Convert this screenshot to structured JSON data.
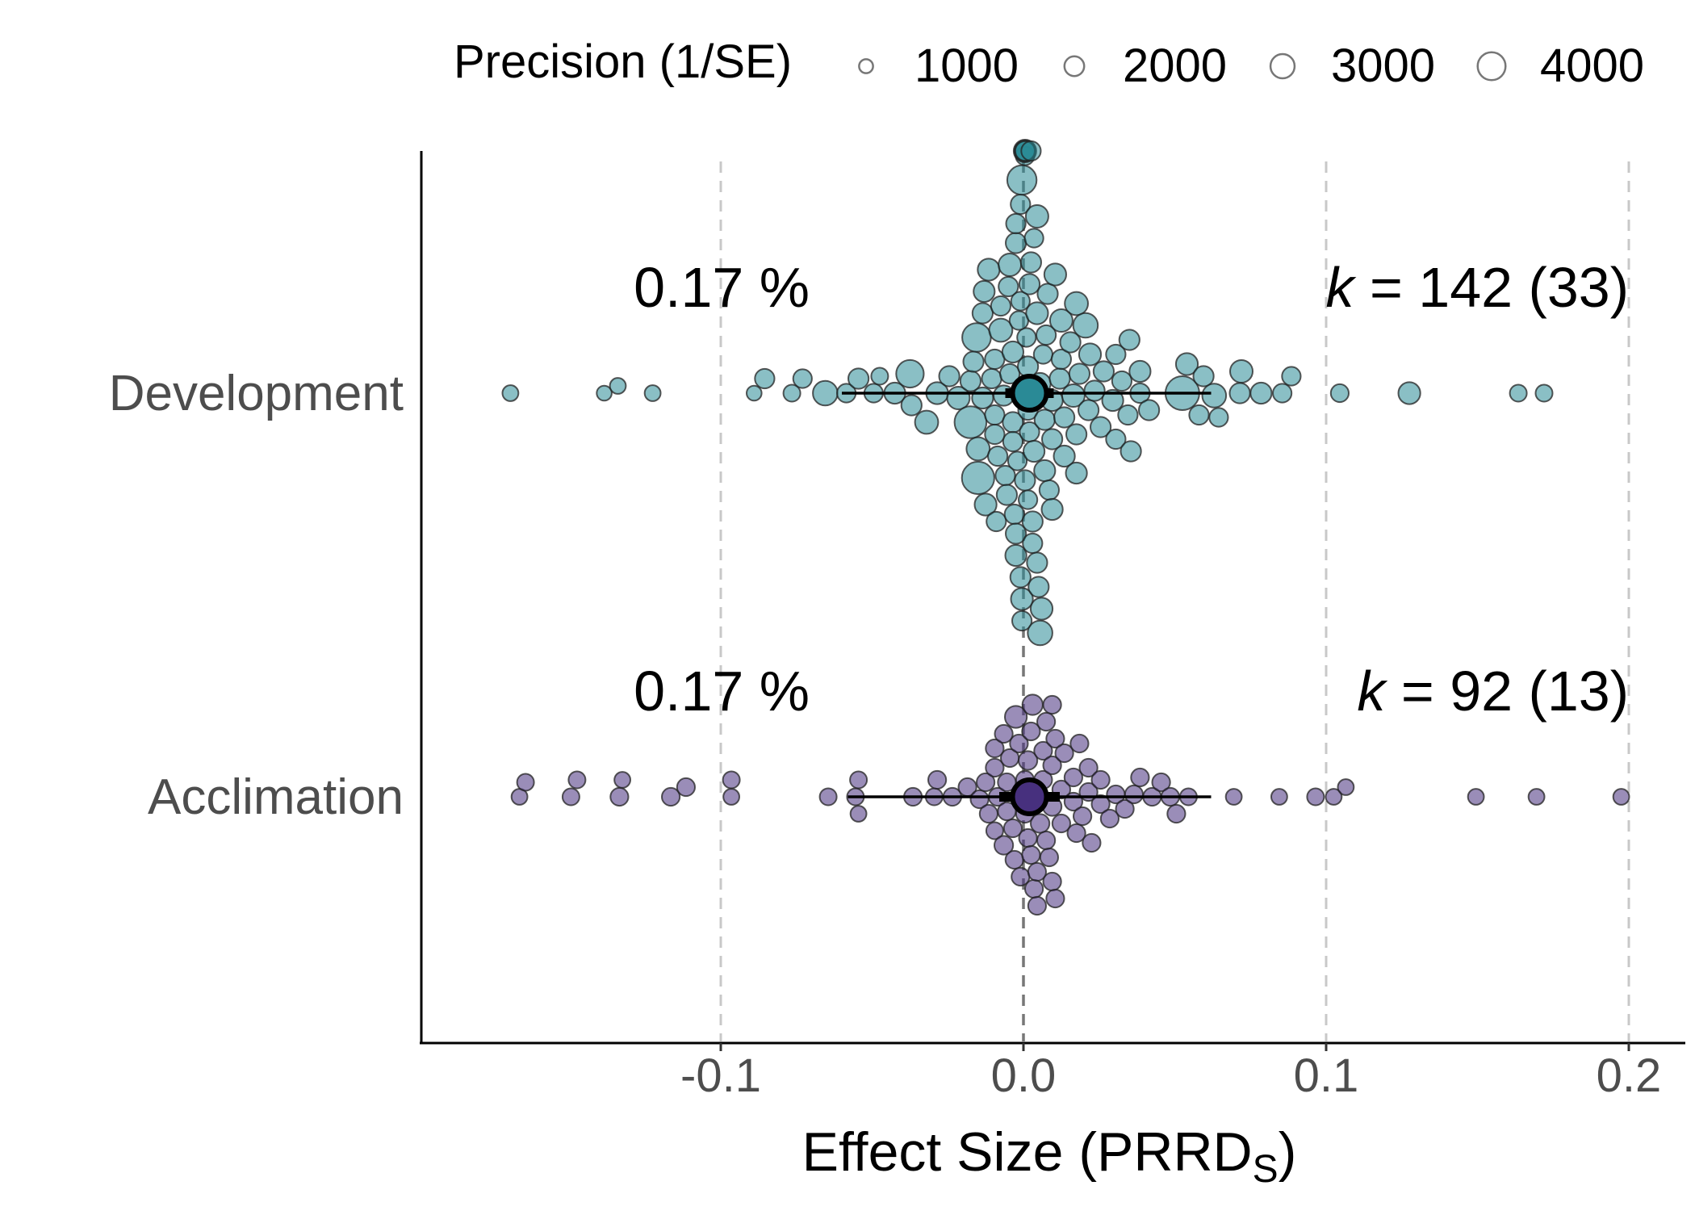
{
  "chart_data": {
    "type": "scatter",
    "subtype": "orchard plot (beeswarm with pooled estimate and confidence interval)",
    "xlabel": "Effect Size (PRRD",
    "xlabel_subscript": "S",
    "xlabel_suffix": ")",
    "xlim": [
      -0.2,
      0.22
    ],
    "x_ticks": [
      -0.1,
      0.0,
      0.1,
      0.2
    ],
    "x_tick_labels": [
      "-0.1",
      "0.0",
      "0.1",
      "0.2"
    ],
    "gridlines": "vertical dashed at x ticks; dark dashed reference line at 0",
    "legend": {
      "placement": "top",
      "title": "Precision (1/SE)",
      "entries": [
        {
          "label": "1000",
          "value": 1000
        },
        {
          "label": "2000",
          "value": 2000
        },
        {
          "label": "3000",
          "value": 3000
        },
        {
          "label": "4000",
          "value": 4000
        }
      ]
    },
    "colors": {
      "Development": "#2a8a96",
      "Acclimation": "#47307e",
      "reference_line": "#777777",
      "grid": "#c8c8c8"
    },
    "groups": [
      {
        "name": "Development",
        "mean": 0.002,
        "ci": [
          -0.006,
          0.01
        ],
        "pi": [
          -0.06,
          0.062
        ],
        "percent_label": "0.17 %",
        "k_label": "k",
        "k_value": "= 142",
        "k_studies": "(33)",
        "points": [
          {
            "x": -0.1695,
            "p": 800
          },
          {
            "x": -0.1385,
            "p": 700
          },
          {
            "x": -0.134,
            "p": 800
          },
          {
            "x": -0.1225,
            "p": 800
          },
          {
            "x": -0.089,
            "p": 700
          },
          {
            "x": -0.0855,
            "p": 1200
          },
          {
            "x": -0.0765,
            "p": 900
          },
          {
            "x": -0.073,
            "p": 1100
          },
          {
            "x": -0.0655,
            "p": 1900
          },
          {
            "x": -0.0585,
            "p": 1100
          },
          {
            "x": -0.0545,
            "p": 1300
          },
          {
            "x": -0.0495,
            "p": 1100
          },
          {
            "x": -0.0475,
            "p": 900
          },
          {
            "x": -0.0425,
            "p": 1400
          },
          {
            "x": -0.037,
            "p": 1300
          },
          {
            "x": -0.0375,
            "p": 2400
          },
          {
            "x": -0.032,
            "p": 1700
          },
          {
            "x": -0.0285,
            "p": 1500
          },
          {
            "x": -0.0245,
            "p": 1300
          },
          {
            "x": -0.0215,
            "p": 1600
          },
          {
            "x": -0.0175,
            "p": 1300
          },
          {
            "x": -0.0135,
            "p": 1400
          },
          {
            "x": -0.0095,
            "p": 1200
          },
          {
            "x": -0.0065,
            "p": 1300
          },
          {
            "x": -0.0035,
            "p": 1300
          },
          {
            "x": -0.0045,
            "p": 1600
          },
          {
            "x": -0.015,
            "p": 1700
          },
          {
            "x": -0.0165,
            "p": 1300
          },
          {
            "x": -0.009,
            "p": 1200
          },
          {
            "x": -0.0155,
            "p": 2600
          },
          {
            "x": -0.0175,
            "p": 3200
          },
          {
            "x": -0.0125,
            "p": 1500
          },
          {
            "x": -0.0075,
            "p": 1700
          },
          {
            "x": -0.0045,
            "p": 1200
          },
          {
            "x": -0.0035,
            "p": 1400
          },
          {
            "x": 0.0005,
            "p": 1300
          },
          {
            "x": 0.0035,
            "p": 1400
          },
          {
            "x": 0.007,
            "p": 1300
          },
          {
            "x": -0.001,
            "p": 1300
          },
          {
            "x": 0.0025,
            "p": 1300
          },
          {
            "x": -0.0025,
            "p": 1300
          },
          {
            "x": 0.003,
            "p": 1300
          },
          {
            "x": 0.0055,
            "p": 1900
          },
          {
            "x": 0.0015,
            "p": 1200
          },
          {
            "x": 0.002,
            "p": 1200
          },
          {
            "x": 0.0005,
            "p": 1100
          },
          {
            "x": 0.0035,
            "p": 1100
          },
          {
            "x": -0.001,
            "p": 1100
          },
          {
            "x": -0.0135,
            "p": 1300
          },
          {
            "x": -0.0105,
            "p": 1200
          },
          {
            "x": -0.013,
            "p": 1400
          },
          {
            "x": -0.0095,
            "p": 1200
          },
          {
            "x": -0.0055,
            "p": 1300
          },
          {
            "x": -0.0115,
            "p": 1500
          },
          {
            "x": -0.015,
            "p": 3300
          },
          {
            "x": -0.0025,
            "p": 1300
          },
          {
            "x": 0.0005,
            "p": 1600
          },
          {
            "x": 0.007,
            "p": 1400
          },
          {
            "x": 0.0045,
            "p": 1600
          },
          {
            "x": 0.0045,
            "p": 1500
          },
          {
            "x": 0.0015,
            "p": 1300
          },
          {
            "x": 0.006,
            "p": 1500
          },
          {
            "x": 0.002,
            "p": 1300
          },
          {
            "x": 0.0005,
            "p": 1200
          },
          {
            "x": -0.001,
            "p": 1200
          },
          {
            "x": -0.0005,
            "p": 1100
          },
          {
            "x": -0.0015,
            "p": 1100
          },
          {
            "x": 0.001,
            "p": 1100
          },
          {
            "x": 0.0005,
            "p": 1400
          },
          {
            "x": -0.0005,
            "p": 1500
          },
          {
            "x": 0.0055,
            "p": 1400
          },
          {
            "x": -0.0025,
            "p": 1400
          },
          {
            "x": 0.005,
            "p": 1300
          },
          {
            "x": -0.0005,
            "p": 2700
          },
          {
            "x": -0.0025,
            "p": 1200
          },
          {
            "x": 0.0045,
            "p": 1300
          },
          {
            "x": 0.008,
            "p": 1300
          },
          {
            "x": 0.0095,
            "p": 1400
          },
          {
            "x": 0.0105,
            "p": 1500
          },
          {
            "x": 0.0135,
            "p": 1300
          },
          {
            "x": 0.0165,
            "p": 1600
          },
          {
            "x": 0.0175,
            "p": 1300
          },
          {
            "x": 0.0205,
            "p": 1900
          },
          {
            "x": 0.0235,
            "p": 1300
          },
          {
            "x": 0.0265,
            "p": 1300
          },
          {
            "x": 0.0305,
            "p": 1200
          },
          {
            "x": 0.0325,
            "p": 1200
          },
          {
            "x": 0.0355,
            "p": 1300
          },
          {
            "x": 0.0385,
            "p": 1200
          },
          {
            "x": 0.0415,
            "p": 1300
          },
          {
            "x": 0.0095,
            "p": 1300
          },
          {
            "x": 0.0135,
            "p": 1400
          },
          {
            "x": 0.0175,
            "p": 1400
          },
          {
            "x": 0.0215,
            "p": 1300
          },
          {
            "x": 0.0255,
            "p": 1300
          },
          {
            "x": 0.0305,
            "p": 1200
          },
          {
            "x": 0.0345,
            "p": 1200
          },
          {
            "x": 0.0125,
            "p": 1600
          },
          {
            "x": 0.0175,
            "p": 1700
          },
          {
            "x": 0.022,
            "p": 1500
          },
          {
            "x": 0.0295,
            "p": 1400
          },
          {
            "x": 0.035,
            "p": 1300
          },
          {
            "x": 0.0385,
            "p": 1400
          },
          {
            "x": 0.0095,
            "p": 1400
          },
          {
            "x": 0.012,
            "p": 1300
          },
          {
            "x": 0.0155,
            "p": 1300
          },
          {
            "x": 0.0185,
            "p": 1300
          },
          {
            "x": 0.0125,
            "p": 1200
          },
          {
            "x": 0.0525,
            "p": 3600
          },
          {
            "x": 0.054,
            "p": 1500
          },
          {
            "x": 0.058,
            "p": 1200
          },
          {
            "x": 0.0595,
            "p": 1300
          },
          {
            "x": 0.063,
            "p": 1800
          },
          {
            "x": 0.0645,
            "p": 1100
          },
          {
            "x": 0.0715,
            "p": 1300
          },
          {
            "x": 0.072,
            "p": 1600
          },
          {
            "x": 0.0785,
            "p": 1400
          },
          {
            "x": 0.0855,
            "p": 1100
          },
          {
            "x": 0.0885,
            "p": 1100
          },
          {
            "x": 0.1045,
            "p": 1000
          },
          {
            "x": 0.1275,
            "p": 1500
          },
          {
            "x": 0.1635,
            "p": 900
          },
          {
            "x": 0.172,
            "p": 900
          },
          {
            "x": -0.0095,
            "p": 1200
          },
          {
            "x": -0.0085,
            "p": 1200
          },
          {
            "x": -0.006,
            "p": 1200
          },
          {
            "x": -0.005,
            "p": 1200
          },
          {
            "x": -0.003,
            "p": 1200
          },
          {
            "x": 0.0005,
            "p": 1200
          },
          {
            "x": -0.0005,
            "p": 1200
          },
          {
            "x": 0.003,
            "p": 1200
          },
          {
            "x": -0.0035,
            "p": 1200
          },
          {
            "x": 0.0025,
            "p": 1200
          },
          {
            "x": -0.002,
            "p": 1100
          },
          {
            "x": 0.0015,
            "p": 1100
          },
          {
            "x": 0.0065,
            "p": 1100
          },
          {
            "x": 0.0075,
            "p": 1200
          },
          {
            "x": 0.0085,
            "p": 1200
          },
          {
            "x": -0.0075,
            "p": 1200
          }
        ]
      },
      {
        "name": "Acclimation",
        "mean": 0.002,
        "ci": [
          -0.008,
          0.012
        ],
        "pi": [
          -0.058,
          0.062
        ],
        "percent_label": "0.17 %",
        "k_label": "k",
        "k_value": "= 92",
        "k_studies": "(13)",
        "points": [
          {
            "x": -0.1665,
            "p": 800
          },
          {
            "x": -0.1645,
            "p": 900
          },
          {
            "x": -0.1495,
            "p": 900
          },
          {
            "x": -0.1475,
            "p": 900
          },
          {
            "x": -0.1335,
            "p": 1000
          },
          {
            "x": -0.1325,
            "p": 800
          },
          {
            "x": -0.1165,
            "p": 1000
          },
          {
            "x": -0.1115,
            "p": 1000
          },
          {
            "x": -0.0965,
            "p": 800
          },
          {
            "x": -0.0965,
            "p": 900
          },
          {
            "x": -0.0645,
            "p": 900
          },
          {
            "x": -0.0545,
            "p": 900
          },
          {
            "x": -0.0545,
            "p": 800
          },
          {
            "x": -0.0555,
            "p": 900
          },
          {
            "x": -0.0365,
            "p": 1000
          },
          {
            "x": -0.0295,
            "p": 900
          },
          {
            "x": -0.0285,
            "p": 1000
          },
          {
            "x": -0.0235,
            "p": 1000
          },
          {
            "x": -0.0185,
            "p": 1000
          },
          {
            "x": -0.0145,
            "p": 1000
          },
          {
            "x": -0.0125,
            "p": 1000
          },
          {
            "x": -0.0095,
            "p": 1000
          },
          {
            "x": -0.0065,
            "p": 1100
          },
          {
            "x": -0.0065,
            "p": 1000
          },
          {
            "x": -0.0035,
            "p": 1000
          },
          {
            "x": -0.0025,
            "p": 1500
          },
          {
            "x": -0.0095,
            "p": 900
          },
          {
            "x": -0.0095,
            "p": 1000
          },
          {
            "x": -0.0055,
            "p": 1000
          },
          {
            "x": -0.001,
            "p": 1000
          },
          {
            "x": 0.0005,
            "p": 1000
          },
          {
            "x": 0.003,
            "p": 1300
          },
          {
            "x": 0.0055,
            "p": 1100
          },
          {
            "x": 0.0085,
            "p": 1000
          },
          {
            "x": 0.0105,
            "p": 1000
          },
          {
            "x": 0.0015,
            "p": 1100
          },
          {
            "x": 0.0045,
            "p": 1100
          },
          {
            "x": 0.0075,
            "p": 1000
          },
          {
            "x": 0.0095,
            "p": 1100
          },
          {
            "x": 0.0125,
            "p": 1000
          },
          {
            "x": 0.0165,
            "p": 1000
          },
          {
            "x": 0.0195,
            "p": 1000
          },
          {
            "x": 0.0225,
            "p": 1000
          },
          {
            "x": 0.0255,
            "p": 1000
          },
          {
            "x": 0.0285,
            "p": 1000
          },
          {
            "x": 0.0305,
            "p": 1000
          },
          {
            "x": 0.0335,
            "p": 1000
          },
          {
            "x": 0.0365,
            "p": 1000
          },
          {
            "x": 0.0385,
            "p": 1000
          },
          {
            "x": 0.0425,
            "p": 1000
          },
          {
            "x": 0.0455,
            "p": 1000
          },
          {
            "x": 0.0485,
            "p": 1000
          },
          {
            "x": 0.0505,
            "p": 1000
          },
          {
            "x": 0.0545,
            "p": 900
          },
          {
            "x": 0.0695,
            "p": 800
          },
          {
            "x": 0.0845,
            "p": 800
          },
          {
            "x": 0.0965,
            "p": 900
          },
          {
            "x": 0.1025,
            "p": 800
          },
          {
            "x": 0.1065,
            "p": 800
          },
          {
            "x": 0.1495,
            "p": 800
          },
          {
            "x": 0.1695,
            "p": 800
          },
          {
            "x": 0.1975,
            "p": 800
          },
          {
            "x": 0.0025,
            "p": 1000
          },
          {
            "x": 0.0065,
            "p": 1000
          },
          {
            "x": 0.0095,
            "p": 1000
          },
          {
            "x": 0.0135,
            "p": 1000
          },
          {
            "x": 0.0165,
            "p": 1000
          },
          {
            "x": 0.0215,
            "p": 1000
          },
          {
            "x": 0.0255,
            "p": 1000
          },
          {
            "x": 0.0095,
            "p": 1000
          },
          {
            "x": 0.0125,
            "p": 1000
          },
          {
            "x": 0.0175,
            "p": 1000
          },
          {
            "x": 0.0215,
            "p": 1000
          },
          {
            "x": 0.0045,
            "p": 1000
          },
          {
            "x": 0.0065,
            "p": 1000
          },
          {
            "x": 0.0025,
            "p": 1000
          },
          {
            "x": -0.003,
            "p": 1000
          },
          {
            "x": -0.0015,
            "p": 1000
          },
          {
            "x": 0.0005,
            "p": 1000
          },
          {
            "x": 0.0045,
            "p": 1000
          },
          {
            "x": 0.0075,
            "p": 1000
          },
          {
            "x": -0.0045,
            "p": 1000
          },
          {
            "x": 0.0095,
            "p": 1000
          },
          {
            "x": 0.0015,
            "p": 1000
          },
          {
            "x": 0.0035,
            "p": 1000
          },
          {
            "x": -0.0015,
            "p": 1000
          },
          {
            "x": 0.0185,
            "p": 1000
          },
          {
            "x": 0.0105,
            "p": 1000
          },
          {
            "x": -0.0085,
            "p": 1000
          },
          {
            "x": -0.0055,
            "p": 1000
          },
          {
            "x": -0.0115,
            "p": 1000
          }
        ]
      }
    ]
  }
}
